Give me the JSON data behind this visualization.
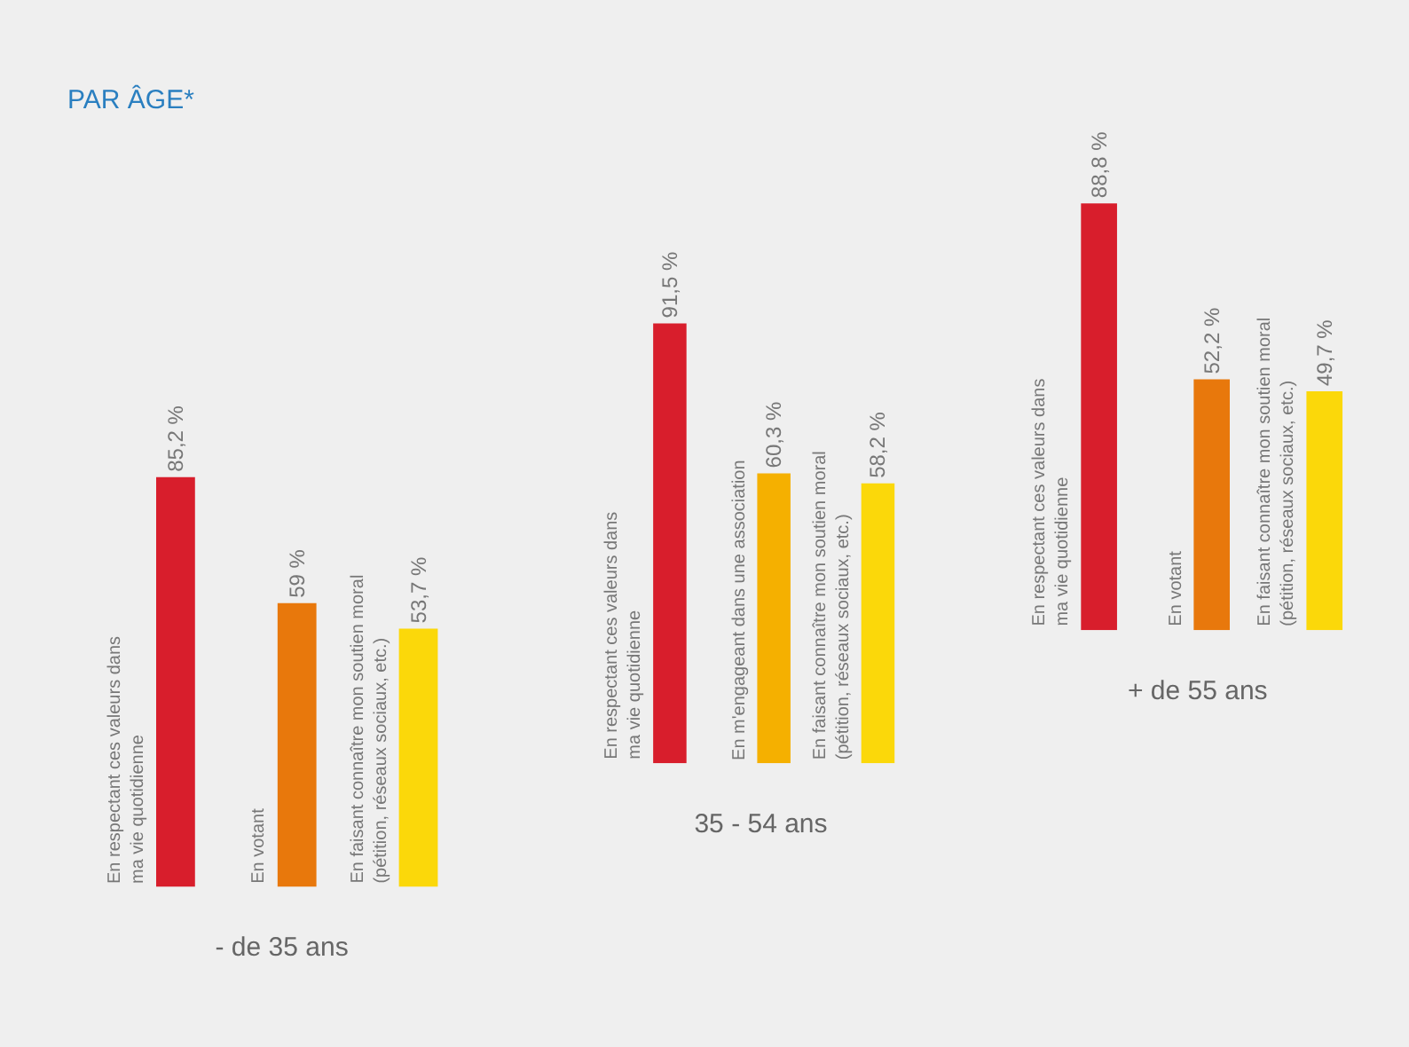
{
  "chart_data": [
    {
      "type": "bar",
      "title": "PAR ÂGE*",
      "xlabel": "- de 35 ans",
      "categories": [
        "En respectant ces valeurs dans\nma vie quotidienne",
        "En votant",
        "En faisant connaître mon soutien moral\n(pétition, réseaux sociaux, etc.)"
      ],
      "values": [
        85.2,
        59,
        53.7
      ],
      "value_labels": [
        "85,2 %",
        "59 %",
        "53,7 %"
      ],
      "colors": [
        "#d81e2c",
        "#e8780c",
        "#fbd80a"
      ],
      "tick_labels": false
    },
    {
      "type": "bar",
      "xlabel": "35 - 54 ans",
      "categories": [
        "En respectant ces valeurs dans\nma vie quotidienne",
        "En m'engageant dans une association",
        "En faisant connaître mon soutien moral\n(pétition, réseaux sociaux, etc.)"
      ],
      "values": [
        91.5,
        60.3,
        58.2
      ],
      "value_labels": [
        "91,5 %",
        "60,3 %",
        "58,2 %"
      ],
      "colors": [
        "#d81e2c",
        "#f5b000",
        "#fbd80a"
      ],
      "tick_labels": false
    },
    {
      "type": "bar",
      "xlabel": "+ de 55 ans",
      "categories": [
        "En respectant ces valeurs dans\nma vie quotidienne",
        "En votant",
        "En faisant connaître mon soutien moral\n(pétition, réseaux sociaux, etc.)"
      ],
      "values": [
        88.8,
        52.2,
        49.7
      ],
      "value_labels": [
        "88,8 %",
        "52,2 %",
        "49,7 %"
      ],
      "colors": [
        "#d81e2c",
        "#e8780c",
        "#fbd80a"
      ],
      "tick_labels": false
    }
  ]
}
